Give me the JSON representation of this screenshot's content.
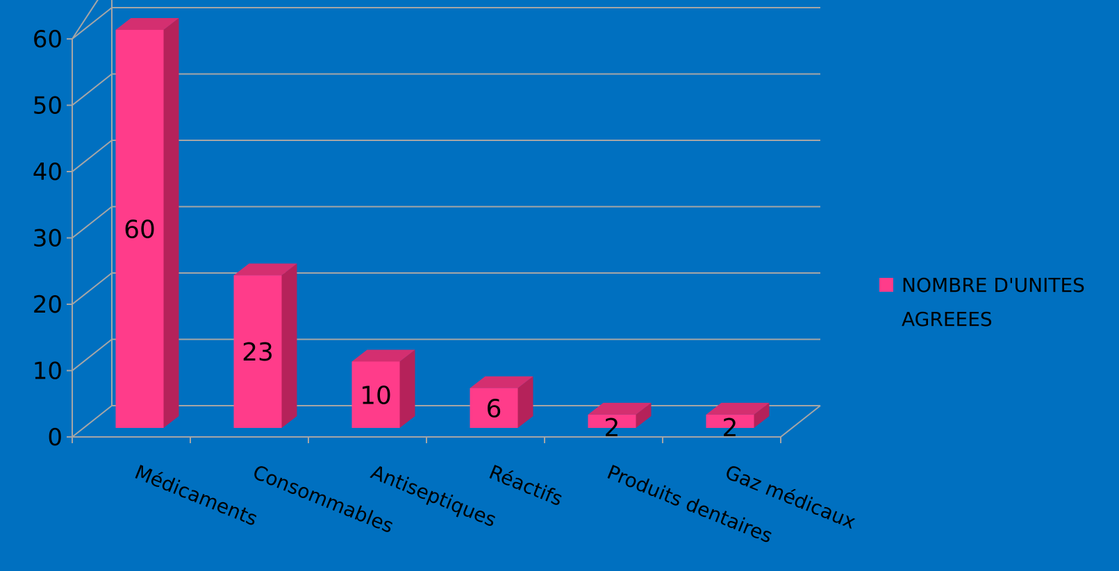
{
  "chart_data": {
    "type": "bar",
    "style": "3d-column",
    "categories": [
      "Médicaments",
      "Consommables",
      "Antiseptiques",
      "Réactifs",
      "Produits dentaires",
      "Gaz médicaux"
    ],
    "series": [
      {
        "name": "NOMBRE D'UNITES AGREEES",
        "values": [
          60,
          23,
          10,
          6,
          2,
          2
        ]
      }
    ],
    "data_labels": [
      "60",
      "23",
      "10",
      "6",
      "2",
      "2"
    ],
    "yticks": [
      "0",
      "10",
      "20",
      "30",
      "40",
      "50",
      "60"
    ],
    "ylim": [
      0,
      60
    ],
    "title": "",
    "xlabel": "",
    "ylabel": "",
    "grid": true,
    "legend_position": "right",
    "legend_lines": [
      "NOMBRE D'UNITES",
      "AGREEES"
    ],
    "colors": {
      "background": "#0070c0",
      "bar_front": "#ff3c8a",
      "bar_top": "#d42f70",
      "bar_side": "#b5225a",
      "grid": "#a6a6a6",
      "text": "#000000"
    }
  }
}
